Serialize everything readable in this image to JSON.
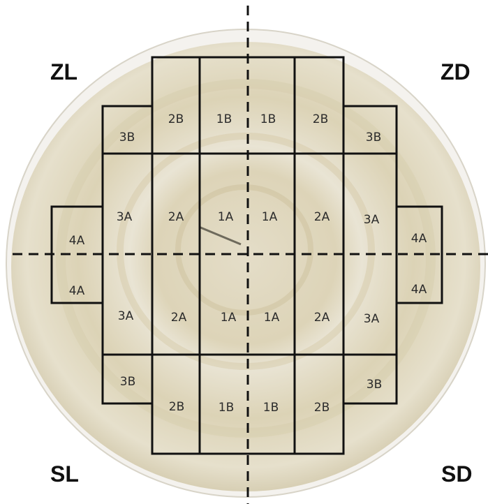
{
  "corners": {
    "top_left": "ZL",
    "top_right": "ZD",
    "bottom_left": "SL",
    "bottom_right": "SD"
  },
  "cells": [
    {
      "id": "r1c2",
      "label": "2B"
    },
    {
      "id": "r1c3",
      "label": "1B"
    },
    {
      "id": "r1c4",
      "label": "1B"
    },
    {
      "id": "r1c5",
      "label": "2B"
    },
    {
      "id": "r1c1",
      "label": "3B"
    },
    {
      "id": "r1c6",
      "label": "3B"
    },
    {
      "id": "r2c1",
      "label": "3A"
    },
    {
      "id": "r2c2",
      "label": "2A"
    },
    {
      "id": "r2c3",
      "label": "1A"
    },
    {
      "id": "r2c4",
      "label": "1A"
    },
    {
      "id": "r2c5",
      "label": "2A"
    },
    {
      "id": "r2c6",
      "label": "3A"
    },
    {
      "id": "r2c0",
      "label": "4A"
    },
    {
      "id": "r2c7",
      "label": "4A"
    },
    {
      "id": "r3c0",
      "label": "4A"
    },
    {
      "id": "r3c7",
      "label": "4A"
    },
    {
      "id": "r3c1",
      "label": "3A"
    },
    {
      "id": "r3c2",
      "label": "2A"
    },
    {
      "id": "r3c3",
      "label": "1A"
    },
    {
      "id": "r3c4",
      "label": "1A"
    },
    {
      "id": "r3c5",
      "label": "2A"
    },
    {
      "id": "r3c6",
      "label": "3A"
    },
    {
      "id": "r4c1",
      "label": "3B"
    },
    {
      "id": "r4c6",
      "label": "3B"
    },
    {
      "id": "r4c2",
      "label": "2B"
    },
    {
      "id": "r4c3",
      "label": "1B"
    },
    {
      "id": "r4c4",
      "label": "1B"
    },
    {
      "id": "r4c5",
      "label": "2B"
    }
  ],
  "colors": {
    "wood_light": "#e8e2cf",
    "wood_mid": "#d6cdb0",
    "wood_ring": "#c9bd98",
    "grid": "#111111"
  }
}
